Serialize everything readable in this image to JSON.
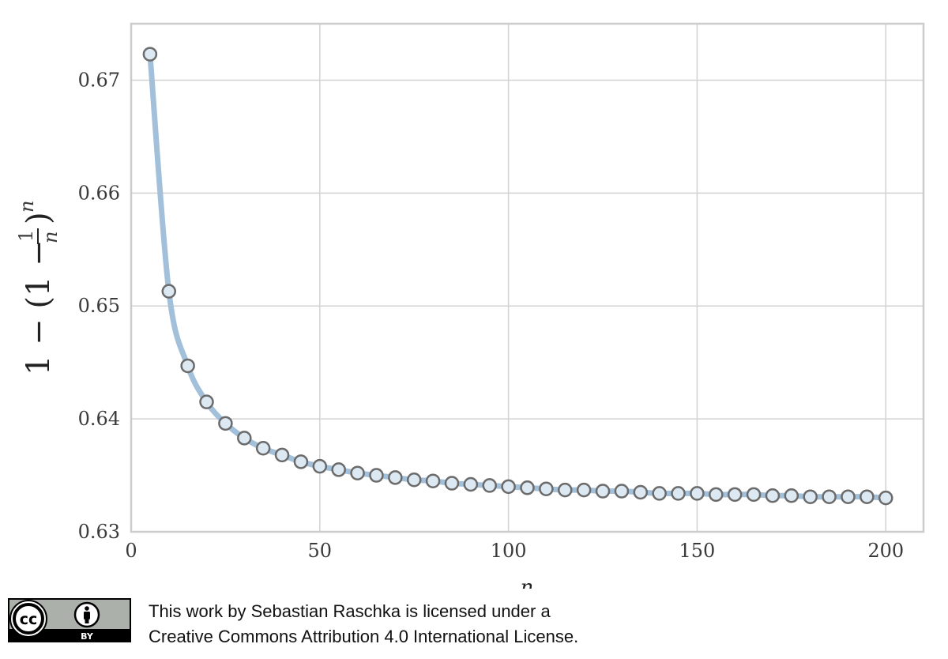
{
  "chart_data": {
    "type": "line",
    "title": "",
    "xlabel": "n",
    "ylabel": "1 − (1 − 1/n)^n",
    "xlim": [
      0,
      210
    ],
    "ylim": [
      0.63,
      0.675
    ],
    "xticks": [
      0,
      50,
      100,
      150,
      200
    ],
    "xtick_labels": [
      "0",
      "50",
      "100",
      "150",
      "200"
    ],
    "yticks": [
      0.63,
      0.64,
      0.65,
      0.66,
      0.67
    ],
    "ytick_labels": [
      "0.63",
      "0.64",
      "0.65",
      "0.66",
      "0.67"
    ],
    "grid": true,
    "series": [
      {
        "x": [
          5,
          10,
          15,
          20,
          25,
          30,
          35,
          40,
          45,
          50,
          55,
          60,
          65,
          70,
          75,
          80,
          85,
          90,
          95,
          100,
          105,
          110,
          115,
          120,
          125,
          130,
          135,
          140,
          145,
          150,
          155,
          160,
          165,
          170,
          175,
          180,
          185,
          190,
          195,
          200
        ],
        "values": [
          0.6723,
          0.6513,
          0.6447,
          0.6415,
          0.6396,
          0.6383,
          0.6374,
          0.6368,
          0.6362,
          0.6358,
          0.6355,
          0.6352,
          0.635,
          0.6348,
          0.6346,
          0.6345,
          0.6343,
          0.6342,
          0.6341,
          0.634,
          0.6339,
          0.6338,
          0.6337,
          0.6337,
          0.6336,
          0.6336,
          0.6335,
          0.6334,
          0.6334,
          0.6334,
          0.6333,
          0.6333,
          0.6333,
          0.6332,
          0.6332,
          0.6331,
          0.6331,
          0.6331,
          0.6331,
          0.633
        ]
      }
    ],
    "colors": {
      "line": "#a3c0da",
      "marker_edge": "#6b6b6b",
      "marker_face": "#dce8f2",
      "grid": "#d2d2d2",
      "frame": "#cccccc"
    }
  },
  "license": {
    "badge_by": "BY",
    "line1": "This work by Sebastian Raschka is licensed under a",
    "line2": "Creative Commons Attribution 4.0 International License."
  }
}
